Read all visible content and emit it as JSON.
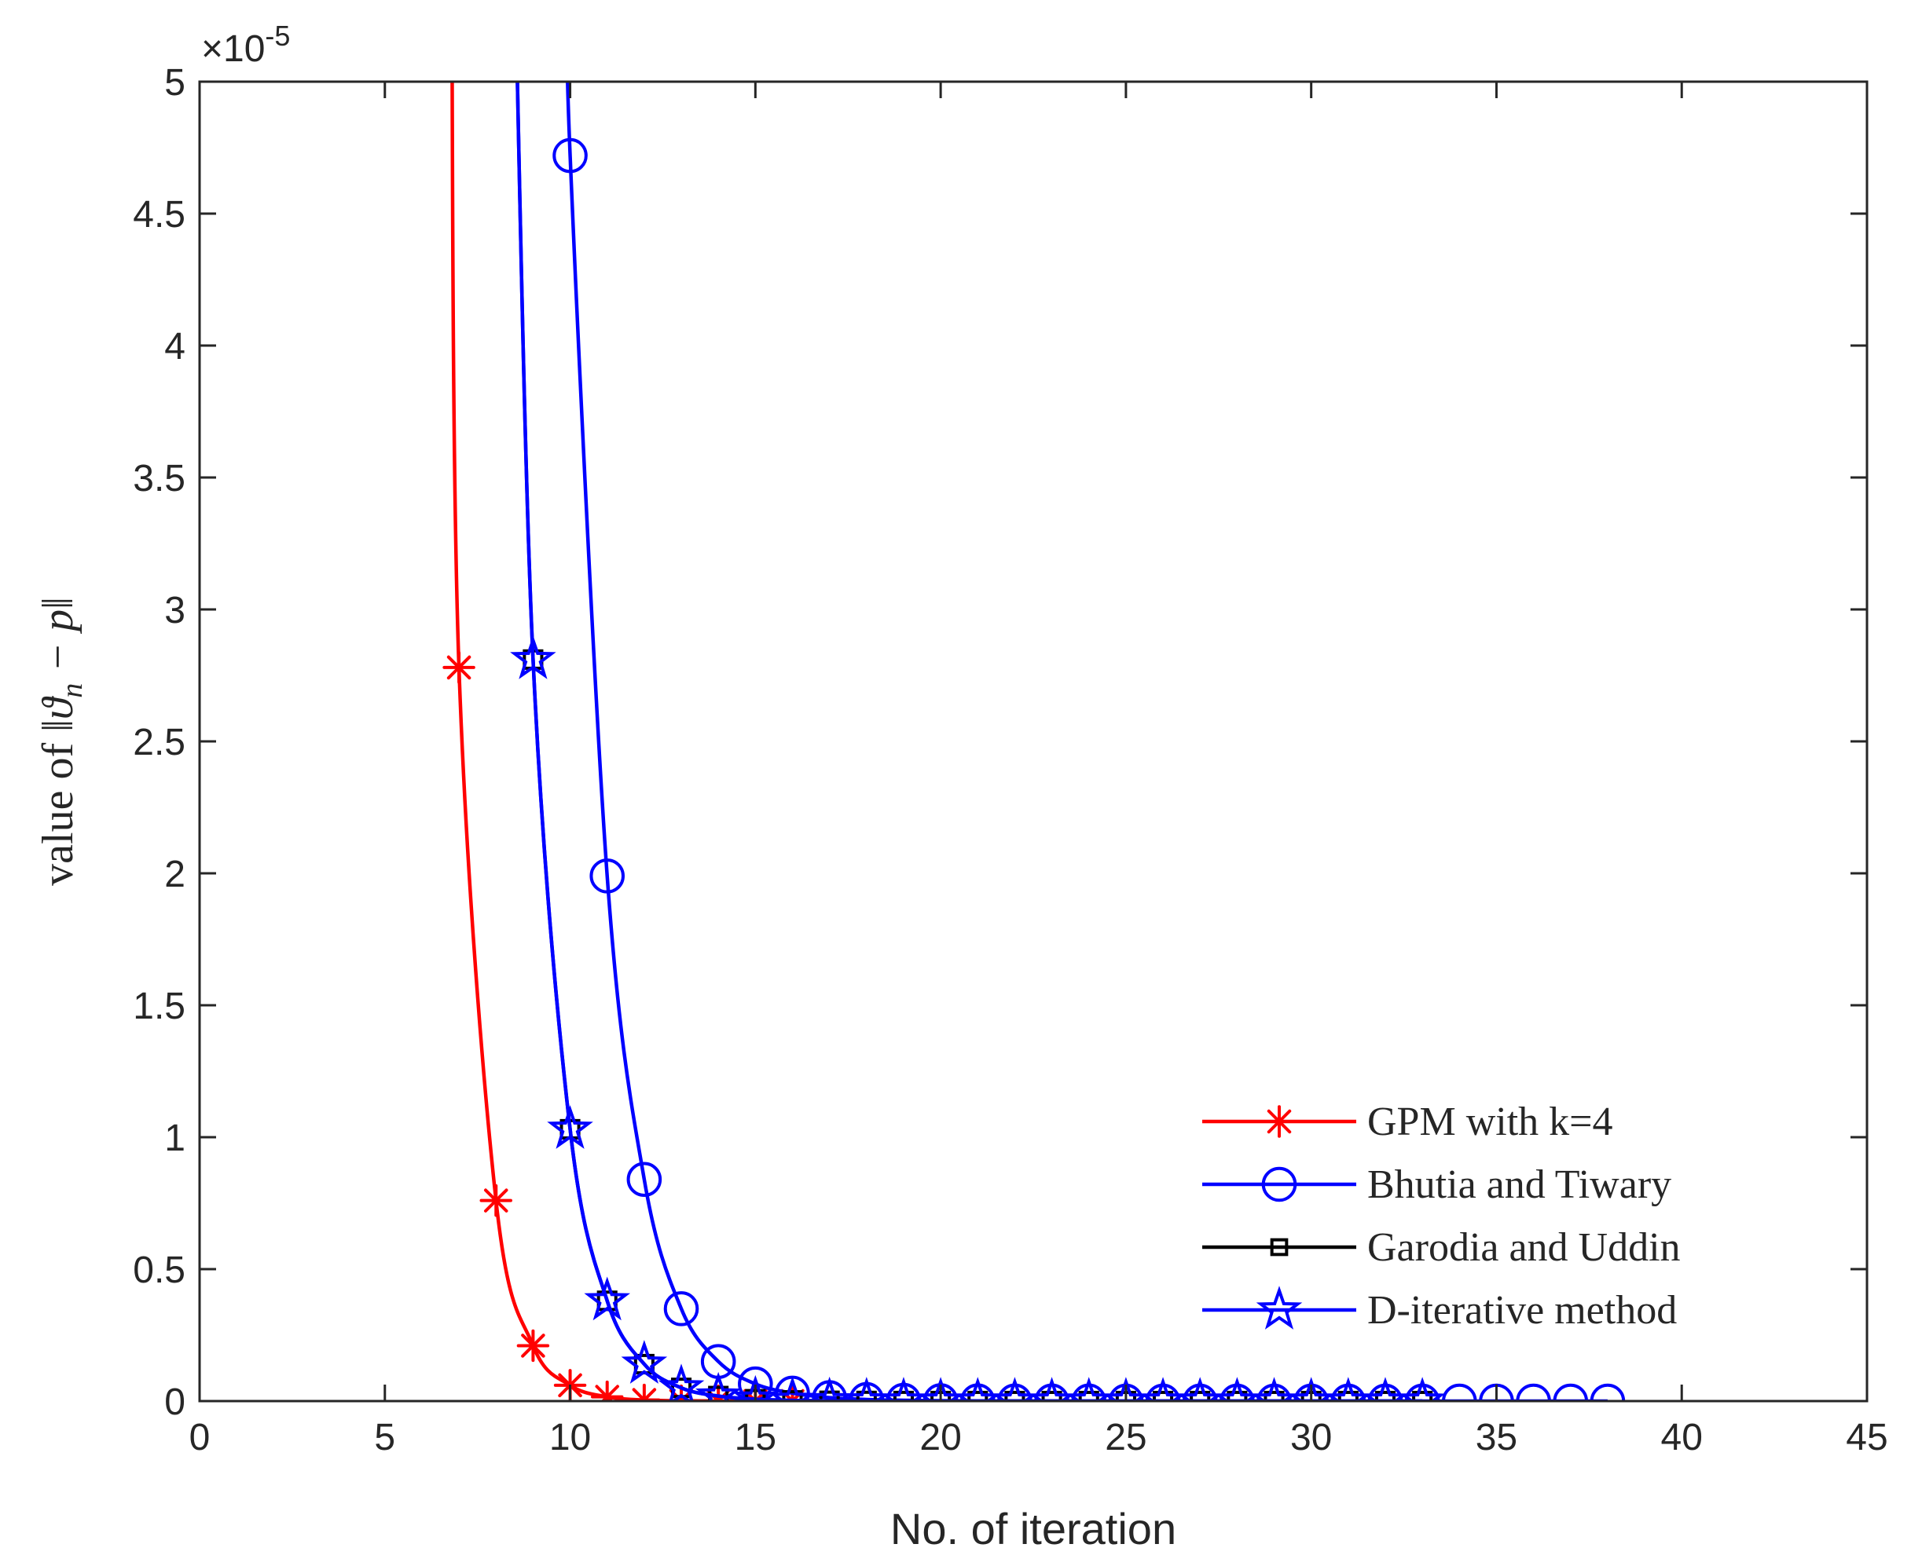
{
  "chart_data": {
    "type": "line",
    "title": "",
    "xlabel": "No. of iteration",
    "ylabel_prefix": "value of",
    "ylabel_math": "‖ϑ",
    "ylabel_sub": "n",
    "ylabel_math_tail": " − p‖",
    "y_exponent_label": "×10",
    "y_exponent_power": "-5",
    "xlim": [
      0,
      45
    ],
    "ylim": [
      0,
      5
    ],
    "y_scale_note": "y values in units of 1e-5",
    "x_ticks": [
      0,
      5,
      10,
      15,
      20,
      25,
      30,
      35,
      40,
      45
    ],
    "x_tick_labels": [
      "0",
      "5",
      "10",
      "15",
      "20",
      "25",
      "30",
      "35",
      "40",
      "45"
    ],
    "y_ticks": [
      0,
      0.5,
      1,
      1.5,
      2,
      2.5,
      3,
      3.5,
      4,
      4.5,
      5
    ],
    "y_tick_labels": [
      "0",
      "0.5",
      "1",
      "1.5",
      "2",
      "2.5",
      "3",
      "3.5",
      "4",
      "4.5",
      "5"
    ],
    "grid": false,
    "legend_position": "bottom-right",
    "series": [
      {
        "name": "GPM with k=4",
        "color": "#ff0000",
        "marker": "asterisk",
        "x": [
          7,
          8,
          9,
          10,
          11,
          12,
          13,
          14,
          15,
          16
        ],
        "y": [
          2.78,
          0.76,
          0.21,
          0.06,
          0.016,
          0.004,
          0.001,
          0.0003,
          0.0001,
          3e-05
        ],
        "offscreen_start": [
          6.8,
          5.5
        ]
      },
      {
        "name": "Bhutia and Tiwary",
        "color": "#0000ff",
        "marker": "circle",
        "x": [
          10,
          11,
          12,
          13,
          14,
          15,
          16,
          17,
          18,
          19,
          20,
          21,
          22,
          23,
          24,
          25,
          26,
          27,
          28,
          29,
          30,
          31,
          32,
          33,
          34,
          35,
          36,
          37,
          38
        ],
        "y": [
          4.72,
          1.99,
          0.84,
          0.35,
          0.15,
          0.065,
          0.03,
          0.013,
          0.006,
          0.003,
          0.0015,
          0.0008,
          0.0004,
          0.0002,
          0.0001,
          5e-05,
          3e-05,
          2e-05,
          1e-05,
          1e-05,
          1e-05,
          0,
          0,
          0,
          0,
          0,
          0,
          0,
          0
        ],
        "offscreen_start": [
          9.95,
          5.5
        ]
      },
      {
        "name": "Garodia and Uddin",
        "color": "#000000",
        "line_color": "#0000ff",
        "legend_line_color": "#000000",
        "marker": "square",
        "x": [
          9,
          10,
          11,
          12,
          13,
          14,
          15,
          16,
          17,
          18,
          19,
          20,
          21,
          22,
          23,
          24,
          25,
          26,
          27,
          28,
          29,
          30,
          31,
          32,
          33
        ],
        "y": [
          2.81,
          1.03,
          0.38,
          0.14,
          0.05,
          0.019,
          0.007,
          0.0026,
          0.001,
          0.0004,
          0.00015,
          5e-05,
          2e-05,
          1e-05,
          0,
          0,
          0,
          0,
          0,
          0,
          0,
          0,
          0,
          0,
          0
        ],
        "offscreen_start": [
          8.5,
          5.5
        ]
      },
      {
        "name": "D-iterative method",
        "color": "#0000ff",
        "marker": "star",
        "x": [
          9,
          10,
          11,
          12,
          13,
          14,
          15,
          16,
          17,
          18,
          19,
          20,
          21,
          22,
          23,
          24,
          25,
          26,
          27,
          28,
          29,
          30,
          31,
          32,
          33
        ],
        "y": [
          2.81,
          1.03,
          0.38,
          0.14,
          0.05,
          0.019,
          0.007,
          0.0026,
          0.001,
          0.0004,
          0.00015,
          5e-05,
          2e-05,
          1e-05,
          0,
          0,
          0,
          0,
          0,
          0,
          0,
          0,
          0,
          0,
          0
        ],
        "offscreen_start": [
          8.5,
          5.5
        ]
      }
    ]
  }
}
